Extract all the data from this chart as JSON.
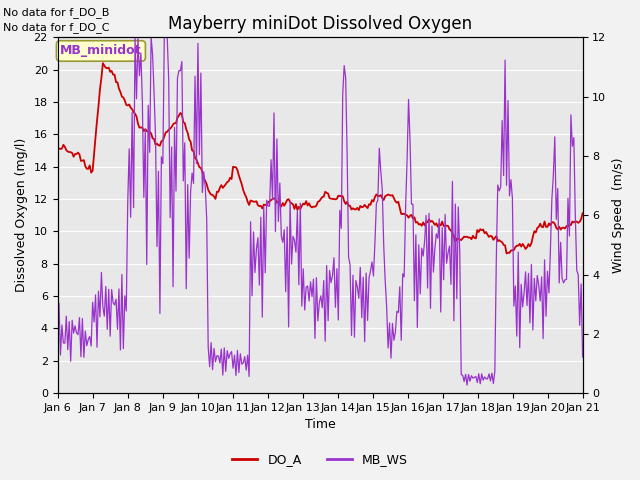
{
  "title": "Mayberry miniDot Dissolved Oxygen",
  "xlabel": "Time",
  "ylabel_left": "Dissolved Oxygen (mg/l)",
  "ylabel_right": "Wind Speed  (m/s)",
  "annotations": [
    "No data for f_DO_B",
    "No data for f_DO_C"
  ],
  "legend_label": "MB_minidot",
  "ylim_left": [
    0,
    22
  ],
  "ylim_right": [
    0,
    12
  ],
  "yticks_left": [
    0,
    2,
    4,
    6,
    8,
    10,
    12,
    14,
    16,
    18,
    20,
    22
  ],
  "yticks_right": [
    0,
    2,
    4,
    6,
    8,
    10,
    12
  ],
  "xtick_labels": [
    "Jan 6",
    "Jan 7",
    "Jan 8",
    "Jan 9",
    "Jan 10",
    "Jan 11",
    "Jan 12",
    "Jan 13",
    "Jan 14",
    "Jan 15",
    "Jan 16",
    "Jan 17",
    "Jan 18",
    "Jan 19",
    "Jan 20",
    "Jan 21"
  ],
  "do_color": "#cc0000",
  "ws_color": "#9933cc",
  "bg_color": "#e8e8e8",
  "grid_color": "#ffffff",
  "legend_box_facecolor": "#ffffcc",
  "legend_box_edgecolor": "#999933",
  "title_fontsize": 12,
  "axis_label_fontsize": 9,
  "tick_fontsize": 8,
  "annotation_fontsize": 8
}
